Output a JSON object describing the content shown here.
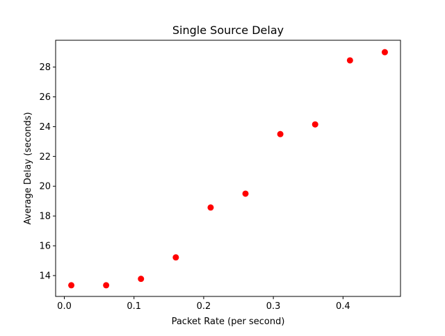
{
  "chart_data": {
    "type": "scatter",
    "title": "Single Source Delay",
    "xlabel": "Packet Rate (per second)",
    "ylabel": "Average Delay (seconds)",
    "x": [
      0.01,
      0.06,
      0.11,
      0.16,
      0.21,
      0.26,
      0.31,
      0.36,
      0.41,
      0.46
    ],
    "y": [
      13.35,
      13.35,
      13.78,
      15.22,
      18.57,
      19.5,
      23.5,
      24.15,
      28.45,
      29.0
    ],
    "xlim": [
      -0.0125,
      0.4825
    ],
    "ylim": [
      12.6,
      29.8
    ],
    "xticks": [
      0.0,
      0.1,
      0.2,
      0.3,
      0.4
    ],
    "xtick_labels": [
      "0.0",
      "0.1",
      "0.2",
      "0.3",
      "0.4"
    ],
    "yticks": [
      14,
      16,
      18,
      20,
      22,
      24,
      26,
      28
    ],
    "ytick_labels": [
      "14",
      "16",
      "18",
      "20",
      "22",
      "24",
      "26",
      "28"
    ],
    "grid": false,
    "marker_color": "#ff0000"
  }
}
